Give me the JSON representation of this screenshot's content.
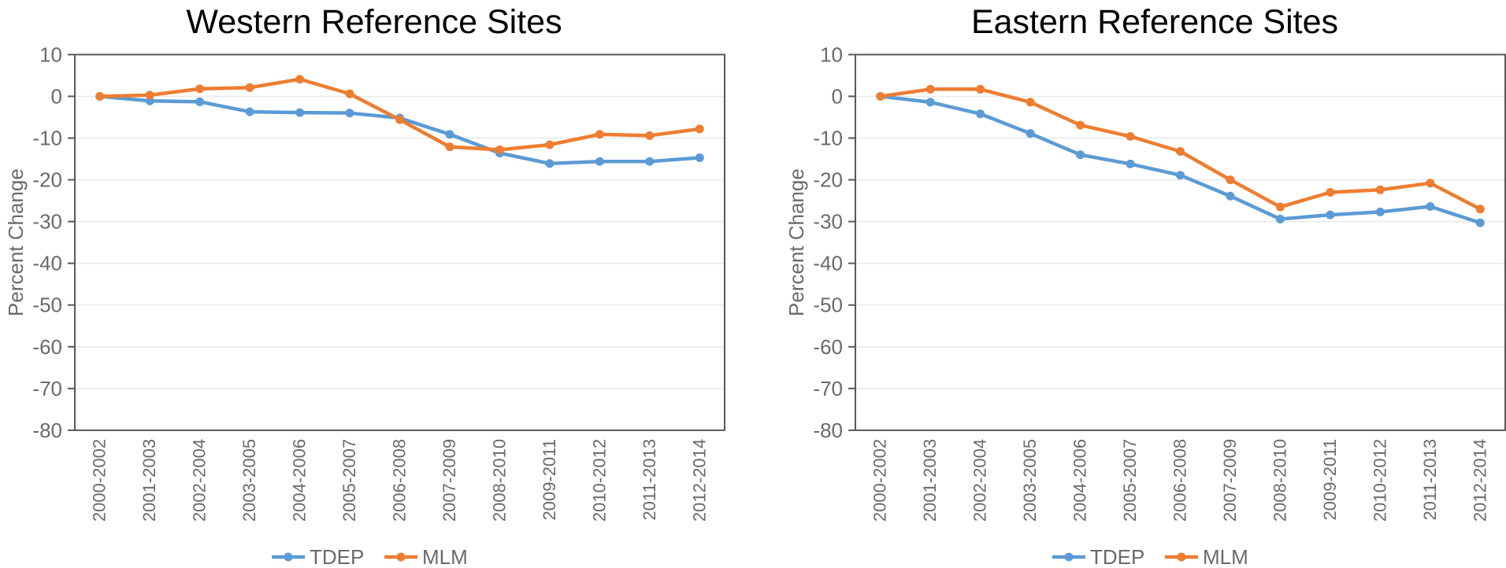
{
  "style": {
    "background": "#ffffff",
    "title_color": "#000000",
    "axis_text_color": "#6a6a6a",
    "axis_line_color": "#595959",
    "grid_color": "#e8e8e8",
    "tdep_color": "#5B9BD5",
    "mlm_color": "#ED7D31"
  },
  "legend": {
    "items": [
      {
        "label": "TDEP",
        "color": "#5B9BD5"
      },
      {
        "label": "MLM",
        "color": "#ED7D31"
      }
    ]
  },
  "chart_data": [
    {
      "type": "line",
      "title": "Western Reference Sites",
      "xlabel": "",
      "ylabel": "Percent Change",
      "ylim": [
        -80,
        10
      ],
      "yticks": [
        10,
        0,
        -10,
        -20,
        -30,
        -40,
        -50,
        -60,
        -70,
        -80
      ],
      "grid": true,
      "legend_position": "bottom",
      "categories": [
        "2000-2002",
        "2001-2003",
        "2002-2004",
        "2003-2005",
        "2004-2006",
        "2005-2007",
        "2006-2008",
        "2007-2009",
        "2008-2010",
        "2009-2011",
        "2010-2012",
        "2011-2013",
        "2012-2014"
      ],
      "series": [
        {
          "name": "TDEP",
          "color": "#5B9BD5",
          "values": [
            0,
            -1.1,
            -1.3,
            -3.7,
            -3.9,
            -4.0,
            -5.2,
            -9.1,
            -13.6,
            -16.1,
            -15.6,
            -15.6,
            -14.7
          ]
        },
        {
          "name": "MLM",
          "color": "#ED7D31",
          "values": [
            0,
            0.3,
            1.8,
            2.1,
            4.1,
            0.6,
            -5.6,
            -12.1,
            -12.8,
            -11.6,
            -9.1,
            -9.4,
            -7.8
          ]
        }
      ]
    },
    {
      "type": "line",
      "title": "Eastern Reference Sites",
      "xlabel": "",
      "ylabel": "Percent Change",
      "ylim": [
        -80,
        10
      ],
      "yticks": [
        10,
        0,
        -10,
        -20,
        -30,
        -40,
        -50,
        -60,
        -70,
        -80
      ],
      "grid": true,
      "legend_position": "bottom",
      "categories": [
        "2000-2002",
        "2001-2003",
        "2002-2004",
        "2003-2005",
        "2004-2006",
        "2005-2007",
        "2006-2008",
        "2007-2009",
        "2008-2010",
        "2009-2011",
        "2010-2012",
        "2011-2013",
        "2012-2014"
      ],
      "series": [
        {
          "name": "TDEP",
          "color": "#5B9BD5",
          "values": [
            0,
            -1.4,
            -4.2,
            -8.9,
            -14.0,
            -16.2,
            -18.9,
            -23.9,
            -29.4,
            -28.4,
            -27.7,
            -26.4,
            -30.3
          ]
        },
        {
          "name": "MLM",
          "color": "#ED7D31",
          "values": [
            0,
            1.7,
            1.7,
            -1.4,
            -6.9,
            -9.6,
            -13.2,
            -20.0,
            -26.5,
            -23.0,
            -22.4,
            -20.8,
            -27.0
          ]
        }
      ]
    }
  ]
}
